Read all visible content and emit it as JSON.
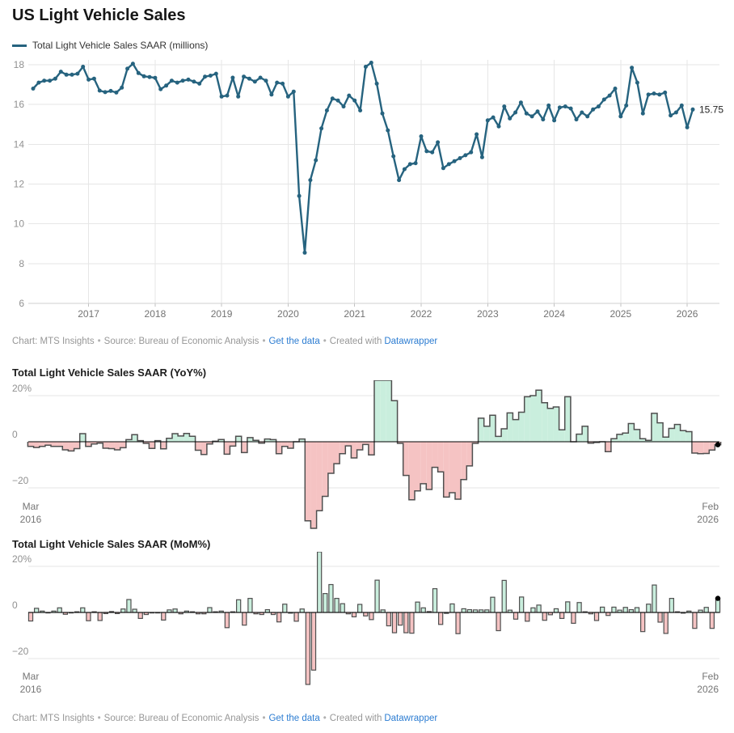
{
  "header": {
    "title": "US Light Vehicle Sales"
  },
  "legend": {
    "label": "Total Light Vehicle Sales SAAR (millions)"
  },
  "footer": {
    "credit": "Chart: MTS Insights",
    "source": "Source: Bureau of Economic Analysis",
    "get_data": "Get the data",
    "created_with": "Created with",
    "datawrapper": "Datawrapper",
    "bullet": "•"
  },
  "palette": {
    "line": "#26637f",
    "positive_fill": "#c9eedd",
    "negative_fill": "#f5c3c3",
    "bar_outline": "#4f4f4f",
    "grid": "#e6e6e6",
    "link_blue": "#2d7dd2"
  },
  "chart_data": [
    {
      "type": "line",
      "title": "US Light Vehicle Sales",
      "start": "Mar 2016",
      "end": "Feb 2026",
      "freq": "monthly",
      "grid": true,
      "legend_position": "top-left",
      "ylim": [
        6,
        18.5
      ],
      "y_ticks": [
        18,
        16,
        14,
        12,
        10,
        8,
        6
      ],
      "x_tick_labels": [
        "2017",
        "2018",
        "2019",
        "2020",
        "2021",
        "2022",
        "2023",
        "2024",
        "2025",
        "2026"
      ],
      "end_label": "15.75",
      "series": [
        {
          "name": "Total Light Vehicle Sales SAAR (millions)",
          "values": [
            16.8,
            17.1,
            17.2,
            17.2,
            17.3,
            17.65,
            17.5,
            17.5,
            17.55,
            17.9,
            17.25,
            17.3,
            16.7,
            16.62,
            16.68,
            16.6,
            16.85,
            17.8,
            18.05,
            17.58,
            17.42,
            17.38,
            17.34,
            16.77,
            16.95,
            17.2,
            17.1,
            17.2,
            17.25,
            17.15,
            17.05,
            17.4,
            17.45,
            17.55,
            16.4,
            16.45,
            17.35,
            16.4,
            17.4,
            17.3,
            17.15,
            17.35,
            17.2,
            16.5,
            17.1,
            17.05,
            16.4,
            16.65,
            11.4,
            8.55,
            12.2,
            13.2,
            14.8,
            15.7,
            16.3,
            16.2,
            15.9,
            16.45,
            16.2,
            15.7,
            17.9,
            18.1,
            17.05,
            15.55,
            14.7,
            13.4,
            12.2,
            12.75,
            13.0,
            13.05,
            14.4,
            13.65,
            13.6,
            14.1,
            12.8,
            13.0,
            13.15,
            13.3,
            13.45,
            13.6,
            14.5,
            13.35,
            15.2,
            15.35,
            14.9,
            15.9,
            15.3,
            15.6,
            16.1,
            15.55,
            15.4,
            15.65,
            15.25,
            15.95,
            15.2,
            15.85,
            15.9,
            15.8,
            15.25,
            15.6,
            15.4,
            15.75,
            15.9,
            16.25,
            16.45,
            16.8,
            15.4,
            15.95,
            17.85,
            17.1,
            15.55,
            16.5,
            16.55,
            16.5,
            16.6,
            15.45,
            15.6,
            15.95,
            14.85,
            15.75
          ]
        }
      ]
    },
    {
      "type": "bar",
      "subtype": "step-area",
      "title": "Total Light Vehicle Sales SAAR (YoY%)",
      "start": "Mar 2016",
      "end": "Feb 2026",
      "freq": "monthly",
      "y_ticks": [
        20,
        0,
        -20
      ],
      "y_tick_labels": [
        "20%",
        "0",
        "−20"
      ],
      "ylim_clip": [
        -37.5,
        26.7
      ],
      "x_start_label": [
        "Mar",
        "2016"
      ],
      "x_end_label": [
        "Feb",
        "2026"
      ],
      "values": [
        -2.0,
        -2.5,
        -2.0,
        -1.5,
        -2.0,
        -2.0,
        -3.5,
        -4.0,
        -3.0,
        3.5,
        -2.0,
        -1.0,
        -0.6,
        -2.8,
        -3.0,
        -3.5,
        -2.6,
        0.9,
        3.1,
        0.5,
        -0.7,
        -2.9,
        0.5,
        -3.1,
        1.5,
        3.5,
        2.5,
        3.6,
        2.4,
        -3.7,
        -5.5,
        -1.0,
        0.2,
        1.0,
        -5.4,
        -1.9,
        2.4,
        -4.7,
        1.8,
        0.6,
        -0.6,
        1.2,
        0.9,
        -5.2,
        -2.0,
        -2.8,
        0.0,
        1.2,
        -34.3,
        -47.9,
        -29.9,
        -23.7,
        -13.7,
        -9.5,
        -5.2,
        -1.8,
        -7.0,
        -3.5,
        -1.2,
        -5.7,
        57.0,
        111.7,
        39.8,
        17.8,
        -0.7,
        -14.6,
        -25.2,
        -21.3,
        -18.2,
        -20.7,
        -11.1,
        -13.1,
        -24.0,
        -22.1,
        -24.9,
        -16.4,
        -10.5,
        -0.7,
        10.2,
        6.7,
        11.5,
        2.3,
        5.6,
        12.5,
        9.6,
        12.8,
        19.5,
        20.0,
        22.4,
        16.9,
        14.5,
        15.1,
        5.2,
        19.5,
        0.0,
        3.3,
        6.7,
        -0.6,
        -0.3,
        0.0,
        -4.3,
        1.3,
        3.2,
        3.8,
        7.9,
        5.3,
        1.3,
        0.6,
        12.3,
        8.2,
        2.0,
        5.8,
        7.5,
        4.8,
        4.4,
        -4.9,
        -5.2,
        -5.1,
        -3.6,
        -1.3
      ]
    },
    {
      "type": "bar",
      "subtype": "column",
      "title": "Total Light Vehicle Sales SAAR (MoM%)",
      "start": "Mar 2016",
      "end": "Feb 2026",
      "freq": "monthly",
      "y_ticks": [
        20,
        0,
        -20
      ],
      "y_tick_labels": [
        "20%",
        "0",
        "−20"
      ],
      "ylim_clip": [
        -31.2,
        26.3
      ],
      "x_start_label": [
        "Mar",
        "2016"
      ],
      "x_end_label": [
        "Feb",
        "2026"
      ],
      "values": [
        -3.7,
        1.8,
        0.6,
        0.0,
        0.6,
        2.0,
        -0.8,
        0.0,
        0.3,
        2.0,
        -3.6,
        0.3,
        -3.5,
        -0.5,
        0.4,
        -0.5,
        1.5,
        5.6,
        1.4,
        -2.6,
        -0.9,
        -0.2,
        -0.2,
        -3.3,
        1.1,
        1.5,
        -0.6,
        0.6,
        0.3,
        -0.6,
        -0.6,
        2.1,
        0.3,
        0.6,
        -6.6,
        0.3,
        5.5,
        -5.5,
        6.1,
        -0.6,
        -0.9,
        1.2,
        -0.9,
        -4.1,
        3.6,
        -0.3,
        -3.8,
        1.5,
        -31.5,
        -25.0,
        42.7,
        8.2,
        12.1,
        6.1,
        3.8,
        -0.6,
        -1.9,
        3.5,
        -1.5,
        -3.1,
        14.0,
        1.1,
        -5.8,
        -8.8,
        -5.5,
        -8.8,
        -9.0,
        4.5,
        2.0,
        0.4,
        10.3,
        -5.2,
        -0.4,
        3.7,
        -9.2,
        1.6,
        1.2,
        1.1,
        1.1,
        1.1,
        6.6,
        -7.9,
        13.9,
        1.0,
        -2.9,
        6.7,
        -3.8,
        2.0,
        3.2,
        -3.4,
        -1.0,
        1.6,
        -2.6,
        4.6,
        -4.7,
        4.3,
        0.3,
        -0.6,
        -3.5,
        2.3,
        -1.3,
        2.3,
        1.0,
        2.2,
        1.2,
        2.1,
        -8.3,
        3.6,
        11.9,
        -4.2,
        -9.1,
        6.1,
        0.3,
        -0.3,
        0.6,
        -6.9,
        1.0,
        2.2,
        -6.9,
        6.1
      ]
    }
  ]
}
